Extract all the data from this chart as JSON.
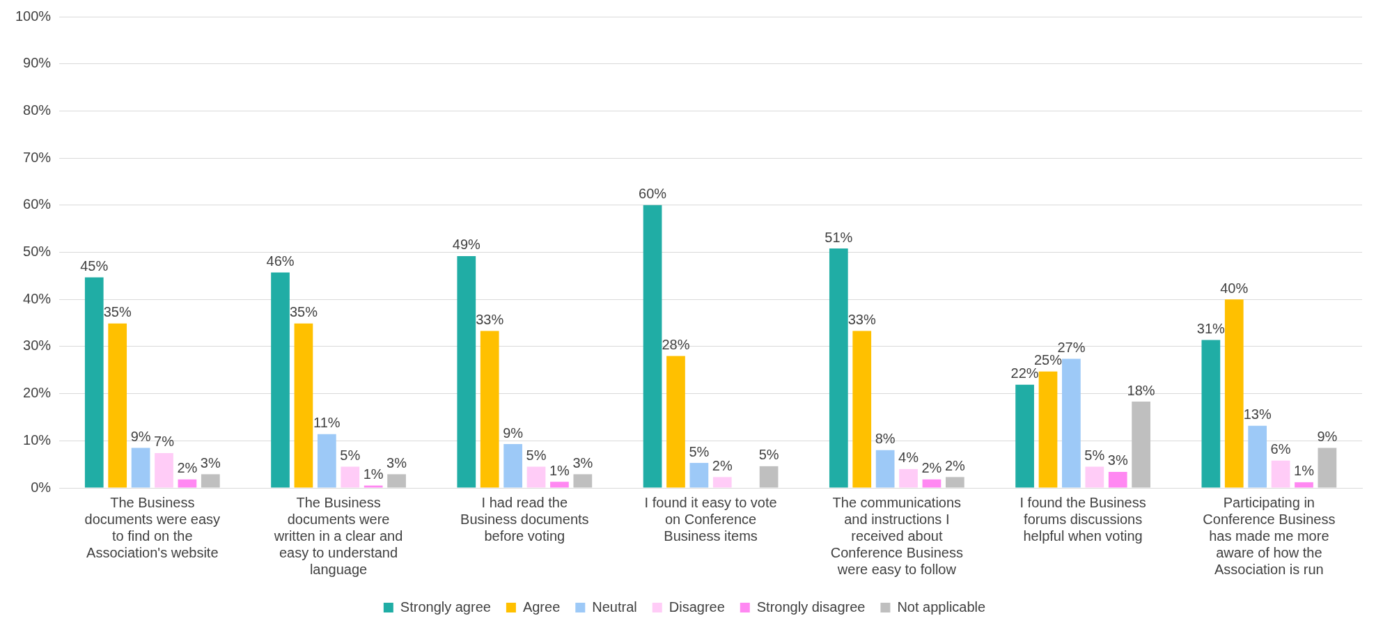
{
  "chart_data": {
    "type": "bar",
    "categories": [
      "The Business documents were easy to find on the Association's website",
      "The Business documents were written in a clear and easy to understand language",
      "I had read the Business documents before voting",
      "I found it easy to vote on Conference Business items",
      "The communications and instructions I received about Conference Business were easy to follow",
      "I found the Business forums discussions helpful when voting",
      "Participating in Conference Business has made me more aware of how the Association is run"
    ],
    "series": [
      {
        "name": "Strongly agree",
        "color": "#20ada5",
        "values": [
          44.7,
          45.7,
          49.2,
          60.0,
          50.8,
          21.9,
          31.4
        ],
        "value_labels": [
          "45%",
          "46%",
          "49%",
          "60%",
          "51%",
          "22%",
          "31%"
        ]
      },
      {
        "name": "Agree",
        "color": "#ffc000",
        "values": [
          34.9,
          34.9,
          33.3,
          28.0,
          33.3,
          24.7,
          40.0
        ],
        "value_labels": [
          "35%",
          "35%",
          "33%",
          "28%",
          "33%",
          "25%",
          "40%"
        ]
      },
      {
        "name": "Neutral",
        "color": "#9dc9f7",
        "values": [
          8.5,
          11.4,
          9.3,
          5.3,
          8.0,
          27.4,
          13.2
        ],
        "value_labels": [
          "9%",
          "11%",
          "9%",
          "5%",
          "8%",
          "27%",
          "13%"
        ]
      },
      {
        "name": "Disagree",
        "color": "#ffccf7",
        "values": [
          7.4,
          4.5,
          4.5,
          2.3,
          4.0,
          4.5,
          5.8
        ],
        "value_labels": [
          "7%",
          "5%",
          "5%",
          "2%",
          "4%",
          "5%",
          "6%"
        ]
      },
      {
        "name": "Strongly disagree",
        "color": "#ff88f2",
        "values": [
          1.8,
          0.5,
          1.3,
          null,
          1.8,
          3.4,
          1.2
        ],
        "value_labels": [
          "2%",
          "1%",
          "1%",
          null,
          "2%",
          "3%",
          "1%"
        ]
      },
      {
        "name": "Not applicable",
        "color": "#bfbfbf",
        "values": [
          2.9,
          2.9,
          2.9,
          4.6,
          2.3,
          18.3,
          8.5
        ],
        "value_labels": [
          "3%",
          "3%",
          "3%",
          "5%",
          "2%",
          "18%",
          "9%"
        ]
      }
    ],
    "ylim": [
      0,
      100
    ],
    "yticks": [
      {
        "value": 0,
        "label": "0%"
      },
      {
        "value": 10,
        "label": "10%"
      },
      {
        "value": 20,
        "label": "20%"
      },
      {
        "value": 30,
        "label": "30%"
      },
      {
        "value": 40,
        "label": "40%"
      },
      {
        "value": 50,
        "label": "50%"
      },
      {
        "value": 60,
        "label": "60%"
      },
      {
        "value": 70,
        "label": "70%"
      },
      {
        "value": 80,
        "label": "80%"
      },
      {
        "value": 90,
        "label": "90%"
      },
      {
        "value": 100,
        "label": "100%"
      }
    ],
    "grid": "y",
    "legend": "bottom"
  }
}
